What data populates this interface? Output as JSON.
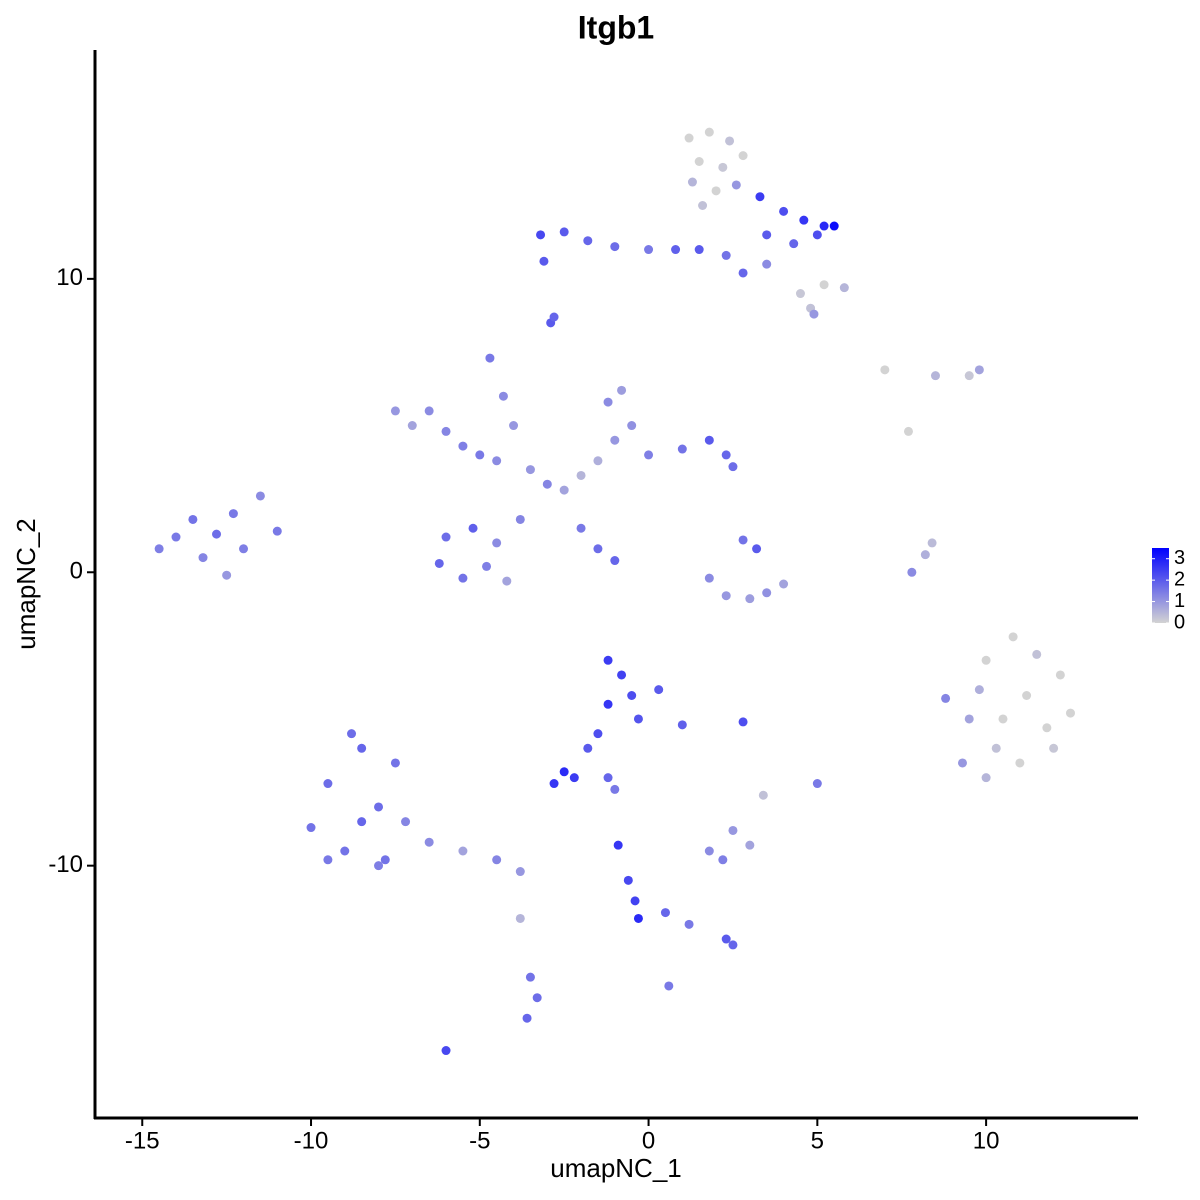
{
  "chart_data": {
    "type": "scatter",
    "title": "Itgb1",
    "x_label": "umapNC_1",
    "y_label": "umapNC_2",
    "xlim": [
      -16.4,
      14.5
    ],
    "ylim": [
      -18.6,
      17.8
    ],
    "xticks": [
      -15,
      -10,
      -5,
      0,
      5,
      10
    ],
    "yticks": [
      -10,
      0,
      10
    ],
    "color_low": "#d3d3d3",
    "color_high": "#0000ff",
    "color_limits": [
      0,
      3.5
    ],
    "color_ticks": [
      0,
      1,
      2,
      3
    ],
    "x": [
      1.2,
      1.8,
      2.4,
      1.5,
      2.2,
      2.8,
      1.3,
      2,
      2.6,
      1.6,
      3.3,
      4,
      4.6,
      5.2,
      5.5,
      3.5,
      4.3,
      5,
      4.5,
      5.2,
      5.8,
      4.8,
      4.9,
      -3.2,
      -2.5,
      -1.8,
      -1,
      0,
      0.8,
      1.5,
      2.3,
      2.8,
      -3.1,
      3.5,
      -2.9,
      -2.8,
      -7.5,
      -7,
      -6.5,
      -6,
      -5.5,
      -5,
      -4.5,
      -4.7,
      -4.3,
      -4,
      -3.5,
      -3,
      -2.5,
      -2,
      -1.5,
      -1,
      -1.2,
      -0.8,
      -0.5,
      0,
      1,
      1.8,
      2.3,
      2.5,
      -6,
      -6.2,
      -5.5,
      -4.8,
      -4.5,
      -5.2,
      -4.2,
      -3.8,
      -2,
      -1.5,
      -1,
      -14.5,
      -14,
      -13.5,
      -13.2,
      -12.8,
      -12.3,
      -12,
      -11.5,
      -11,
      -12.5,
      1.8,
      2.3,
      3,
      3.5,
      3.2,
      2.8,
      4,
      7.8,
      8.2,
      8.4,
      7,
      8.5,
      9.5,
      9.8,
      7.7,
      8.8,
      9.5,
      9.3,
      10,
      10.8,
      11.5,
      12.2,
      12.5,
      12,
      11,
      10,
      10.5,
      11.2,
      9.8,
      11.8,
      10.3,
      -1.2,
      -0.8,
      -0.5,
      -1.2,
      0.3,
      1,
      -0.3,
      -1.5,
      -1.8,
      -2.5,
      -2.8,
      -2.2,
      -1.2,
      -1,
      -10,
      -9.5,
      -9,
      -8.5,
      -8,
      -7.8,
      -7.5,
      -9.5,
      -8.8,
      -8,
      -7.2,
      -8.5,
      -6.5,
      -5.5,
      -4.5,
      -3.8,
      -3.8,
      -3.5,
      -3.3,
      -3.6,
      -6,
      0.6,
      -0.9,
      -0.6,
      -0.4,
      -0.3,
      0.5,
      1.2,
      2.3,
      2.5,
      1.8,
      2.5,
      3,
      2.2,
      3.4,
      5,
      2.8
    ],
    "y": [
      14.8,
      15,
      14.7,
      14,
      13.8,
      14.2,
      13.3,
      13,
      13.2,
      12.5,
      12.8,
      12.3,
      12,
      11.8,
      11.8,
      11.5,
      11.2,
      11.5,
      9.5,
      9.8,
      9.7,
      9,
      8.8,
      11.5,
      11.6,
      11.3,
      11.1,
      11,
      11,
      11,
      10.8,
      10.2,
      10.6,
      10.5,
      8.5,
      8.7,
      5.5,
      5,
      5.5,
      4.8,
      4.3,
      4,
      3.8,
      7.3,
      6,
      5,
      3.5,
      3,
      2.8,
      3.3,
      3.8,
      4.5,
      5.8,
      6.2,
      5,
      4,
      4.2,
      4.5,
      4,
      3.6,
      1.2,
      0.3,
      -0.2,
      0.2,
      1,
      1.5,
      -0.3,
      1.8,
      1.5,
      0.8,
      0.4,
      0.8,
      1.2,
      1.8,
      0.5,
      1.3,
      2,
      0.8,
      2.6,
      1.4,
      -0.1,
      -0.2,
      -0.8,
      -0.9,
      -0.7,
      0.8,
      1.1,
      -0.4,
      0,
      0.6,
      1,
      6.9,
      6.7,
      6.7,
      6.9,
      4.8,
      -4.3,
      -5,
      -6.5,
      -3,
      -2.2,
      -2.8,
      -3.5,
      -4.8,
      -6,
      -6.5,
      -7,
      -5,
      -4.2,
      -4,
      -5.3,
      -6,
      -3,
      -3.5,
      -4.2,
      -4.5,
      -4,
      -5.2,
      -5,
      -5.5,
      -6,
      -6.8,
      -7.2,
      -7,
      -7,
      -7.4,
      -8.7,
      -7.2,
      -9.5,
      -6,
      -8,
      -9.8,
      -6.5,
      -9.8,
      -5.5,
      -10,
      -8.5,
      -8.5,
      -9.2,
      -9.5,
      -9.8,
      -10.2,
      -11.8,
      -13.8,
      -14.5,
      -15.2,
      -16.3,
      -14.1,
      -9.3,
      -10.5,
      -11.2,
      -11.8,
      -11.6,
      -12,
      -12.5,
      -12.7,
      -9.5,
      -8.8,
      -9.3,
      -9.8,
      -7.6,
      -7.2,
      -5.1
    ],
    "values": [
      0,
      0,
      0.3,
      0,
      0.2,
      0,
      0.5,
      0,
      1,
      0.3,
      2.5,
      2.2,
      2.6,
      2.8,
      3.3,
      2,
      1.8,
      2.2,
      0.2,
      0,
      0.5,
      0.3,
      1,
      2.3,
      2,
      1.8,
      1.7,
      1.5,
      1.9,
      2,
      1.6,
      1.8,
      2,
      1.2,
      2,
      1.8,
      1,
      0.8,
      1.2,
      1.3,
      1.4,
      1.5,
      1.2,
      1.5,
      1.2,
      1,
      1,
      1.3,
      0.8,
      0.5,
      0.6,
      1,
      1.2,
      0.9,
      1.1,
      1.4,
      1.6,
      2,
      1.8,
      1.7,
      1.7,
      1.8,
      1.6,
      1.4,
      1.2,
      1.9,
      0.8,
      1.3,
      1.5,
      1.7,
      1.8,
      1.4,
      1.5,
      1.6,
      1.3,
      1.7,
      1.5,
      1.4,
      1.2,
      1.5,
      1,
      1.2,
      1,
      0.9,
      1.1,
      2,
      1.6,
      0.8,
      1.2,
      0.6,
      0.4,
      0,
      0.5,
      0.2,
      0.8,
      0,
      1.3,
      0.8,
      1,
      0,
      0,
      0.3,
      0,
      0,
      0.2,
      0,
      0.5,
      0,
      0,
      0.6,
      0,
      0.3,
      2.5,
      2.4,
      2.2,
      2.6,
      2,
      1.9,
      2.1,
      2.2,
      2,
      2.8,
      2.6,
      2.5,
      1.8,
      1.5,
      1.6,
      1.7,
      1.6,
      1.8,
      1.7,
      1.6,
      1.6,
      1.5,
      1.7,
      1.4,
      1.3,
      1.8,
      1.2,
      0.8,
      1.3,
      1,
      0.5,
      1.6,
      1.7,
      1.8,
      2.3,
      1.5,
      2.6,
      2.3,
      2.4,
      2.8,
      1.8,
      1.5,
      2,
      1.8,
      1.2,
      1,
      0.8,
      1.4,
      0.3,
      1.5,
      2.2
    ]
  }
}
